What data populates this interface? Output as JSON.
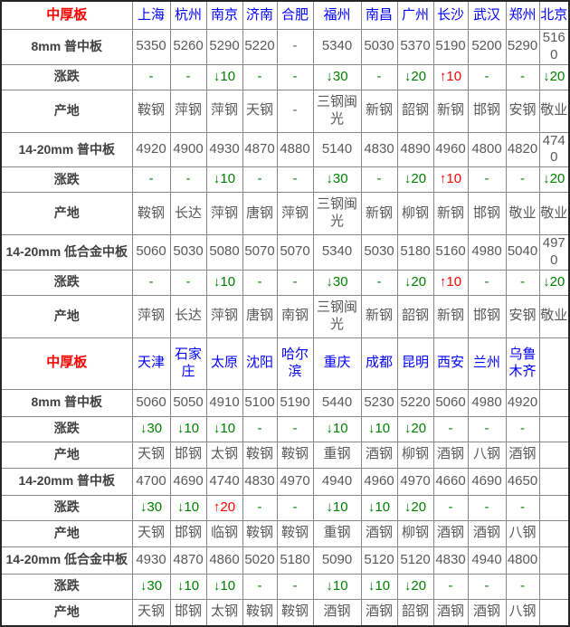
{
  "colors": {
    "section_title_red": "#ff0000",
    "city_blue": "#0000ff",
    "change_green": "#008000",
    "change_up_red": "#ff0000",
    "label_gray": "#404040",
    "value_gray": "#595959",
    "border_gray": "#878787",
    "outer_border": "#262626",
    "background": "#ffffff"
  },
  "table": {
    "sections": [
      {
        "title": "中厚板",
        "cities": [
          "上海",
          "杭州",
          "南京",
          "济南",
          "合肥",
          "福州",
          "南昌",
          "广州",
          "长沙",
          "武汉",
          "郑州",
          "北京"
        ],
        "rows": [
          {
            "label": "8mm 普中板",
            "kind": "price",
            "cells": [
              "5350",
              "5260",
              "5290",
              "5220",
              "-",
              "5340",
              "5030",
              "5370",
              "5190",
              "5200",
              "5290",
              "5160"
            ]
          },
          {
            "label": "涨跌",
            "kind": "change",
            "cells": [
              "-",
              "-",
              "↓10",
              "-",
              "-",
              "↓30",
              "-",
              "↓20",
              "↑10",
              "-",
              "-",
              "↓20"
            ]
          },
          {
            "label": "产地",
            "kind": "origin",
            "cells": [
              "鞍钢",
              "萍钢",
              "萍钢",
              "天钢",
              "-",
              "三钢闽光",
              "新钢",
              "韶钢",
              "新钢",
              "邯钢",
              "安钢",
              "敬业"
            ]
          },
          {
            "label": "14-20mm 普中板",
            "kind": "price",
            "cells": [
              "4920",
              "4900",
              "4930",
              "4870",
              "4880",
              "5140",
              "4830",
              "4890",
              "4960",
              "4800",
              "4820",
              "4740"
            ]
          },
          {
            "label": "涨跌",
            "kind": "change",
            "cells": [
              "-",
              "-",
              "↓10",
              "-",
              "-",
              "↓30",
              "-",
              "↓20",
              "↑10",
              "-",
              "-",
              "↓20"
            ]
          },
          {
            "label": "产地",
            "kind": "origin",
            "cells": [
              "鞍钢",
              "长达",
              "萍钢",
              "唐钢",
              "萍钢",
              "三钢闽光",
              "新钢",
              "柳钢",
              "新钢",
              "邯钢",
              "敬业",
              "敬业"
            ]
          },
          {
            "label": "14-20mm 低合金中板",
            "kind": "price",
            "cells": [
              "5060",
              "5030",
              "5080",
              "5070",
              "5070",
              "5340",
              "5030",
              "5180",
              "5160",
              "4980",
              "5040",
              "4970"
            ]
          },
          {
            "label": "涨跌",
            "kind": "change",
            "cells": [
              "-",
              "-",
              "↓10",
              "-",
              "-",
              "↓30",
              "-",
              "↓20",
              "↑10",
              "-",
              "-",
              "↓20"
            ]
          },
          {
            "label": "产地",
            "kind": "origin",
            "cells": [
              "萍钢",
              "长达",
              "萍钢",
              "唐钢",
              "南钢",
              "三钢闽光",
              "新钢",
              "韶钢",
              "新钢",
              "邯钢",
              "安钢",
              "敬业"
            ]
          }
        ]
      },
      {
        "title": "中厚板",
        "cities": [
          "天津",
          "石家庄",
          "太原",
          "沈阳",
          "哈尔滨",
          "重庆",
          "成都",
          "昆明",
          "西安",
          "兰州",
          "乌鲁木齐",
          ""
        ],
        "rows": [
          {
            "label": "8mm 普中板",
            "kind": "price",
            "cells": [
              "5060",
              "5050",
              "4910",
              "5100",
              "5190",
              "5440",
              "5230",
              "5220",
              "5060",
              "4980",
              "4920",
              ""
            ]
          },
          {
            "label": "涨跌",
            "kind": "change",
            "cells": [
              "↓30",
              "↓10",
              "↓10",
              "-",
              "-",
              "↓10",
              "↓10",
              "↓20",
              "-",
              "-",
              "-",
              ""
            ]
          },
          {
            "label": "产地",
            "kind": "origin",
            "cells": [
              "天钢",
              "邯钢",
              "太钢",
              "鞍钢",
              "鞍钢",
              "重钢",
              "酒钢",
              "柳钢",
              "酒钢",
              "八钢",
              "酒钢",
              ""
            ]
          },
          {
            "label": "14-20mm 普中板",
            "kind": "price",
            "cells": [
              "4700",
              "4690",
              "4740",
              "4830",
              "4970",
              "4940",
              "4960",
              "4970",
              "4660",
              "4690",
              "4650",
              ""
            ]
          },
          {
            "label": "涨跌",
            "kind": "change",
            "cells": [
              "↓30",
              "↓10",
              "↑20",
              "-",
              "-",
              "↓10",
              "↓10",
              "↓20",
              "-",
              "-",
              "-",
              ""
            ]
          },
          {
            "label": "产地",
            "kind": "origin",
            "cells": [
              "天钢",
              "邯钢",
              "临钢",
              "鞍钢",
              "鞍钢",
              "重钢",
              "酒钢",
              "柳钢",
              "酒钢",
              "酒钢",
              "八钢",
              ""
            ]
          },
          {
            "label": "14-20mm 低合金中板",
            "kind": "price",
            "cells": [
              "4930",
              "4870",
              "4860",
              "5020",
              "5180",
              "5090",
              "5120",
              "5120",
              "4830",
              "4940",
              "4800",
              ""
            ]
          },
          {
            "label": "涨跌",
            "kind": "change",
            "cells": [
              "↓30",
              "↓10",
              "↓10",
              "-",
              "-",
              "↓10",
              "↓10",
              "↓20",
              "-",
              "-",
              "-",
              ""
            ]
          },
          {
            "label": "产地",
            "kind": "origin",
            "cells": [
              "天钢",
              "邯钢",
              "太钢",
              "鞍钢",
              "鞍钢",
              "酒钢",
              "酒钢",
              "韶钢",
              "酒钢",
              "酒钢",
              "八钢",
              ""
            ]
          }
        ]
      }
    ]
  }
}
